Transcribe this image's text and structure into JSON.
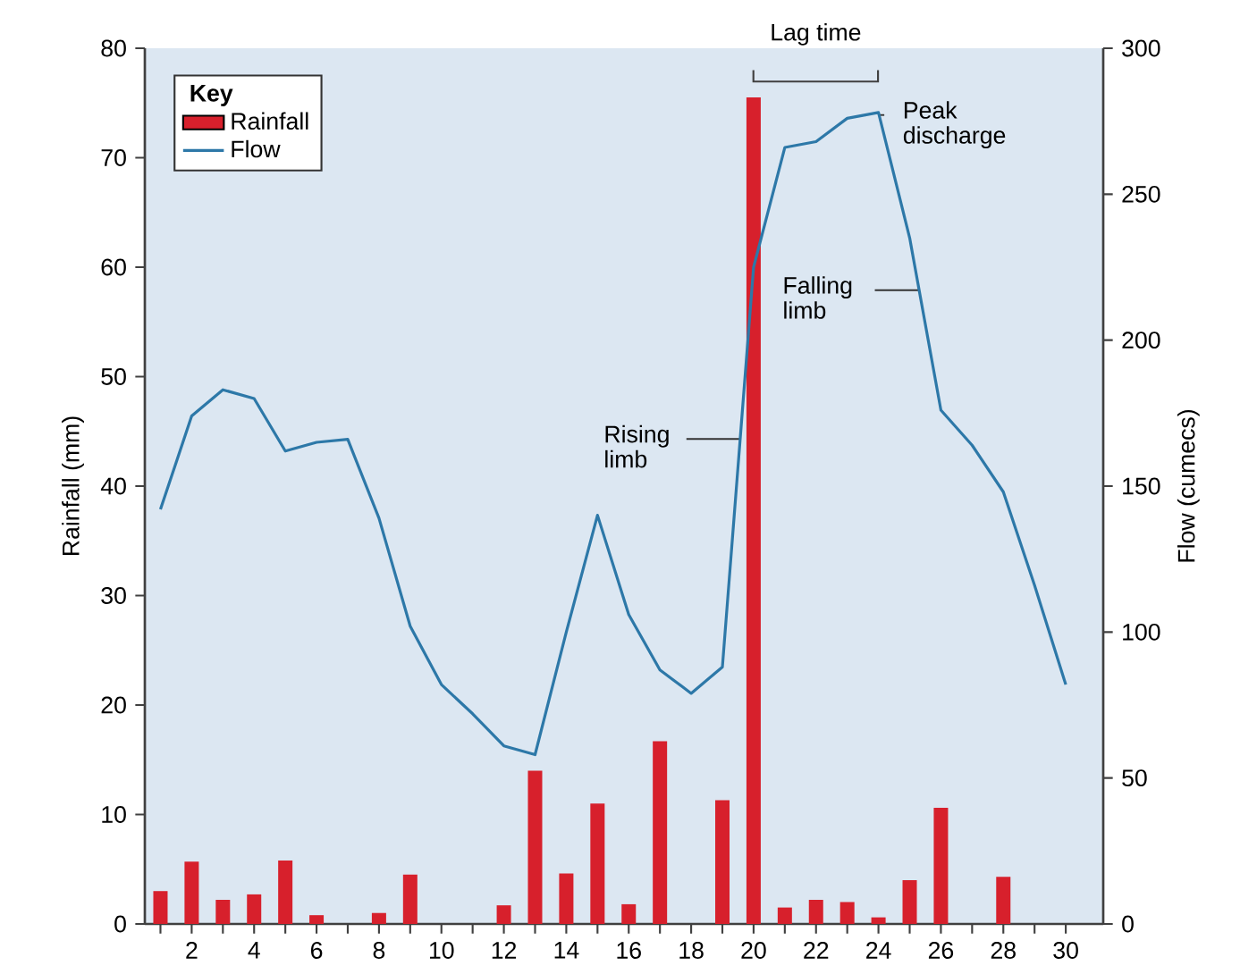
{
  "chart_data": {
    "type": "bar",
    "x": [
      1,
      2,
      3,
      4,
      5,
      6,
      7,
      8,
      9,
      10,
      11,
      12,
      13,
      14,
      15,
      16,
      17,
      18,
      19,
      20,
      21,
      22,
      23,
      24,
      25,
      26,
      27,
      28,
      29,
      30
    ],
    "series": [
      {
        "name": "Rainfall",
        "color": "#d7202c",
        "values": [
          3,
          5.7,
          2.2,
          2.7,
          5.8,
          0.8,
          0,
          1,
          4.5,
          0,
          0,
          1.7,
          14,
          4.6,
          11,
          1.8,
          16.7,
          0,
          11.3,
          75.5,
          1.5,
          2.2,
          2,
          0.6,
          4,
          10.6,
          0,
          4.3,
          0,
          0
        ]
      },
      {
        "name": "Flow",
        "type": "line",
        "axis": "y2",
        "color": "#2d78a8",
        "values": [
          142,
          174,
          183,
          180,
          162,
          165,
          166,
          139,
          102,
          82,
          72,
          61,
          58,
          100,
          140,
          106,
          87,
          79,
          88,
          225,
          266,
          268,
          276,
          278,
          235,
          176,
          164,
          148,
          116,
          82
        ]
      }
    ],
    "xlim": [
      0.5,
      31.2
    ],
    "xticks": [
      {
        "value": 1,
        "label": null
      },
      2,
      {
        "value": 3,
        "label": null
      },
      4,
      {
        "value": 5,
        "label": null
      },
      6,
      {
        "value": 7,
        "label": null
      },
      8,
      {
        "value": 9,
        "label": null
      },
      10,
      {
        "value": 11,
        "label": null
      },
      12,
      {
        "value": 13,
        "label": null
      },
      14,
      {
        "value": 15,
        "label": null
      },
      16,
      {
        "value": 17,
        "label": null
      },
      18,
      {
        "value": 19,
        "label": null
      },
      20,
      {
        "value": 21,
        "label": null
      },
      22,
      {
        "value": 23,
        "label": null
      },
      24,
      {
        "value": 25,
        "label": null
      },
      26,
      {
        "value": 27,
        "label": null
      },
      28,
      {
        "value": 29,
        "label": null
      },
      30
    ],
    "ylim": [
      0,
      80
    ],
    "yticks": [
      0,
      10,
      20,
      30,
      40,
      50,
      60,
      70,
      80
    ],
    "y2lim": [
      0,
      300
    ],
    "y2ticks": [
      0,
      50,
      100,
      150,
      200,
      250,
      300
    ],
    "ylabel": "Rainfall (mm)",
    "y2label": "Flow (cumecs)",
    "legend": "top left",
    "legend_title": "Key",
    "annotations": [
      "Lag time",
      {
        "text": "Rising limb",
        "x": 19.57,
        "y": 44.3
      },
      {
        "text": "Falling limb",
        "x": 25.3,
        "y": 57.9
      },
      {
        "text": "Peak discharge",
        "x": 24,
        "y": 73.9
      }
    ]
  }
}
